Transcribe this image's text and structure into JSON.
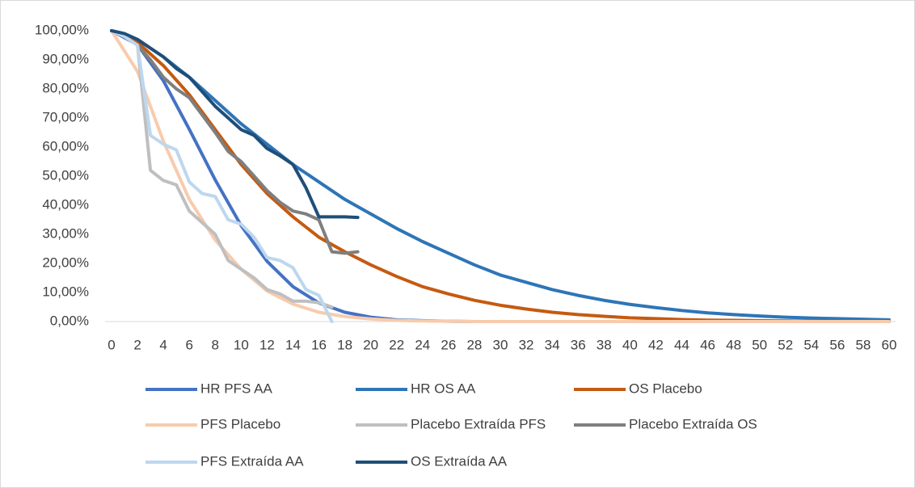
{
  "chart_data": {
    "type": "line",
    "xlim": [
      0,
      60
    ],
    "xticks": [
      0,
      2,
      4,
      6,
      8,
      10,
      12,
      14,
      16,
      18,
      20,
      22,
      24,
      26,
      28,
      30,
      32,
      34,
      36,
      38,
      40,
      42,
      44,
      46,
      48,
      50,
      52,
      54,
      56,
      58,
      60
    ],
    "ylim": [
      0,
      100
    ],
    "yticks": [
      {
        "value": 0,
        "label": "0,00%"
      },
      {
        "value": 10,
        "label": "10,00%"
      },
      {
        "value": 20,
        "label": "20,00%"
      },
      {
        "value": 30,
        "label": "30,00%"
      },
      {
        "value": 40,
        "label": "40,00%"
      },
      {
        "value": 50,
        "label": "50,00%"
      },
      {
        "value": 60,
        "label": "60,00%"
      },
      {
        "value": 70,
        "label": "70,00%"
      },
      {
        "value": 80,
        "label": "80,00%"
      },
      {
        "value": 90,
        "label": "90,00%"
      },
      {
        "value": 100,
        "label": "100,00%"
      }
    ],
    "grid": false,
    "legend": "bottom",
    "series": [
      {
        "name": "HR PFS AA",
        "color": "#4472c4",
        "x": [
          0,
          2,
          4,
          6,
          8,
          10,
          12,
          14,
          16,
          18,
          20,
          22,
          24,
          26,
          28,
          30,
          32,
          34,
          36,
          38,
          40,
          42,
          44,
          46,
          48,
          50,
          52,
          54,
          56,
          58,
          60
        ],
        "values": [
          100,
          95.2,
          82.8,
          66.1,
          48.7,
          33,
          20.7,
          12,
          6.4,
          3.2,
          1.5,
          0.6,
          0.3,
          0.1,
          0,
          0,
          0,
          0,
          0,
          0,
          0,
          0,
          0,
          0,
          0,
          0,
          0,
          0,
          0,
          0,
          0
        ]
      },
      {
        "name": "HR OS AA",
        "color": "#2e75b6",
        "x": [
          0,
          2,
          4,
          6,
          8,
          10,
          12,
          14,
          16,
          18,
          20,
          22,
          24,
          26,
          28,
          30,
          32,
          34,
          36,
          38,
          40,
          42,
          44,
          46,
          48,
          50,
          52,
          54,
          56,
          58,
          60
        ],
        "values": [
          100,
          97,
          91,
          84,
          76,
          68,
          61,
          54,
          48,
          42,
          37,
          32,
          27.5,
          23.5,
          19.5,
          16,
          13.5,
          11,
          9,
          7.3,
          5.9,
          4.8,
          3.8,
          3,
          2.4,
          1.9,
          1.5,
          1.2,
          1,
          0.8,
          0.6
        ]
      },
      {
        "name": "OS Placebo",
        "color": "#c55a11",
        "x": [
          0,
          2,
          4,
          6,
          8,
          10,
          12,
          14,
          16,
          18,
          20,
          22,
          24,
          26,
          28,
          30,
          32,
          34,
          36,
          38,
          40,
          42,
          44,
          46,
          48,
          50,
          52,
          54,
          56,
          58,
          60
        ],
        "values": [
          100,
          96,
          88,
          78,
          66,
          54,
          44,
          36,
          29,
          24,
          19.5,
          15.5,
          12,
          9.5,
          7.3,
          5.6,
          4.3,
          3.2,
          2.4,
          1.8,
          1.3,
          1,
          0.7,
          0.5,
          0.4,
          0.3,
          0.2,
          0.1,
          0.1,
          0.1,
          0
        ]
      },
      {
        "name": "PFS Placebo",
        "color": "#f8cbad",
        "x": [
          0,
          2,
          4,
          6,
          8,
          10,
          12,
          14,
          16,
          18,
          20,
          22,
          24,
          26,
          28,
          30,
          32,
          34,
          36,
          38,
          40,
          42,
          44,
          46,
          48,
          50,
          52,
          54,
          56,
          58,
          60
        ],
        "values": [
          100,
          86,
          62,
          42,
          28,
          18,
          10.5,
          6,
          3.2,
          1.7,
          0.9,
          0.4,
          0.2,
          0.1,
          0,
          0,
          0,
          0,
          0,
          0,
          0,
          0,
          0,
          0,
          0,
          0,
          0,
          0,
          0,
          0,
          0
        ]
      },
      {
        "name": "Placebo Extraída PFS",
        "color": "#bfbfbf",
        "x": [
          0,
          1,
          2,
          3,
          4,
          5,
          6,
          7,
          8,
          9,
          10,
          11,
          12,
          13,
          14,
          15,
          16,
          17
        ],
        "values": [
          100,
          98,
          95,
          52,
          48.5,
          47,
          38,
          34,
          30,
          21,
          18,
          15,
          11,
          9.5,
          7,
          7,
          6.5,
          5
        ]
      },
      {
        "name": "Placebo Extraída OS",
        "color": "#7f7f7f",
        "x": [
          2,
          3,
          4,
          5,
          6,
          7,
          8,
          9,
          10,
          11,
          12,
          13,
          14,
          15,
          16,
          17,
          18,
          19
        ],
        "values": [
          95,
          90,
          84,
          80,
          77,
          71,
          65,
          58.5,
          55,
          50,
          45,
          41,
          38,
          37,
          35,
          24,
          23.5,
          24
        ]
      },
      {
        "name": "PFS Extraída AA",
        "color": "#bdd7ee",
        "x": [
          0,
          1,
          2,
          3,
          4,
          5,
          6,
          7,
          8,
          9,
          10,
          11,
          12,
          13,
          14,
          15,
          16,
          17
        ],
        "values": [
          100,
          98,
          95,
          64,
          61,
          59,
          48,
          44,
          43,
          35,
          33.5,
          29,
          22,
          21,
          18.5,
          11,
          9,
          0
        ]
      },
      {
        "name": "OS Extraída AA",
        "color": "#1f4e79",
        "x": [
          0,
          1,
          2,
          3,
          4,
          5,
          6,
          7,
          8,
          9,
          10,
          11,
          12,
          13,
          14,
          15,
          16,
          17,
          18,
          19
        ],
        "values": [
          100,
          99,
          97,
          94,
          91,
          87,
          84,
          79,
          74,
          70,
          66,
          64,
          59.5,
          57,
          54,
          46,
          36,
          36,
          36,
          35.8
        ]
      }
    ]
  }
}
